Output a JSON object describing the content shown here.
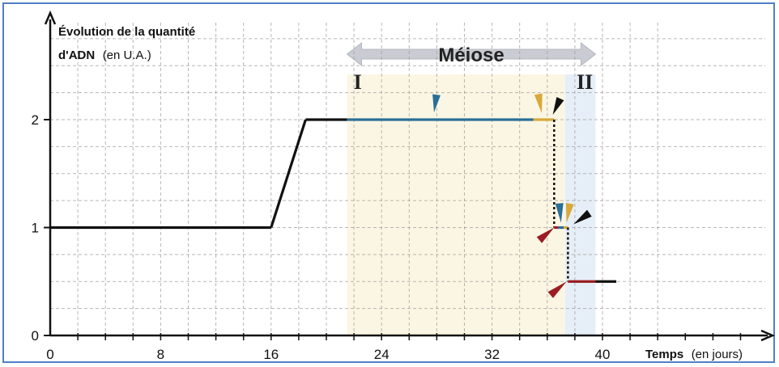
{
  "chart_data": {
    "type": "line",
    "ylabel_line1": "Évolution de la quantité",
    "ylabel_line2_bold": "d'ADN",
    "ylabel_line2_unit": "(en U.A.)",
    "xlabel_bold": "Temps",
    "xlabel_unit": "(en jours)",
    "xlim": [
      0,
      40
    ],
    "ylim": [
      0,
      2
    ],
    "x_ticks": [
      0,
      8,
      16,
      24,
      32,
      40
    ],
    "y_ticks": [
      0,
      1,
      2
    ],
    "grid": true,
    "series": [
      {
        "points": [
          [
            0,
            1
          ],
          [
            16,
            1
          ],
          [
            18.5,
            2
          ],
          [
            36.5,
            2
          ],
          [
            36.5,
            1
          ],
          [
            37.5,
            1
          ],
          [
            37.5,
            0.5
          ],
          [
            41,
            0.5
          ]
        ]
      }
    ],
    "meiose_label": "Méiose",
    "meiose_range": [
      21.5,
      39.5
    ],
    "phases": [
      {
        "label": "I",
        "range": [
          21.5,
          37.3
        ],
        "color": "#fbf6e3"
      },
      {
        "label": "II",
        "range": [
          37.3,
          39.5
        ],
        "color": "#e6eff7"
      }
    ],
    "colors": {
      "line": "#111111",
      "blue": "#2a6f97",
      "gold": "#d8a83a",
      "red": "#9b1c22",
      "grid": "#9a9a9a",
      "arrow": "#c9ccd2"
    }
  }
}
